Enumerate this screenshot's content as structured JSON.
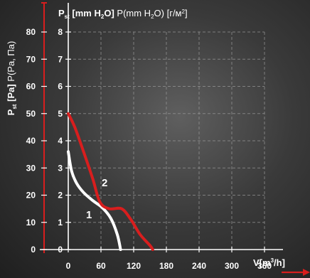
{
  "chart_data": {
    "type": "line",
    "y_axis_left": {
      "label_main": "P",
      "label_sub": "st",
      "label_unit": "[Pa]",
      "label_extra": "P(Pa, Па)",
      "ticks": [
        0,
        10,
        20,
        30,
        40,
        50,
        60,
        70,
        80
      ],
      "ylim": [
        0,
        80
      ]
    },
    "y_axis_right": {
      "label_main": "P",
      "label_sub": "st",
      "label_unit": "[mm H",
      "label_sub2": "2",
      "label_close": "O]",
      "label_extra": "P(mm H",
      "label_extra_sub": "2",
      "label_extra_close": "O) [г/м",
      "label_extra_sup": "2",
      "label_extra_end": "]",
      "ticks": [
        0,
        1,
        2,
        3,
        4,
        5,
        6,
        7,
        8
      ],
      "ylim": [
        0,
        8
      ]
    },
    "x_axis": {
      "label_main": "V[m",
      "label_sup": "3",
      "label_end": "/h]",
      "ticks": [
        0,
        60,
        120,
        180,
        240,
        300,
        360
      ],
      "xlim": [
        0,
        360
      ]
    },
    "series": [
      {
        "name": "1",
        "color": "#ffffff",
        "points": [
          [
            0,
            36
          ],
          [
            6,
            29
          ],
          [
            15,
            24.5
          ],
          [
            28,
            21
          ],
          [
            45,
            18
          ],
          [
            62,
            15.5
          ],
          [
            78,
            11.5
          ],
          [
            90,
            5.5
          ],
          [
            96,
            0
          ]
        ]
      },
      {
        "name": "2",
        "color": "#d81e1e",
        "points": [
          [
            0,
            50
          ],
          [
            12,
            45
          ],
          [
            28,
            36
          ],
          [
            45,
            26
          ],
          [
            58,
            17.5
          ],
          [
            75,
            15
          ],
          [
            98,
            15
          ],
          [
            115,
            11
          ],
          [
            132,
            5.5
          ],
          [
            150,
            1.5
          ],
          [
            155,
            0
          ]
        ]
      }
    ],
    "grid": true,
    "accent_color": "#d81e1e"
  }
}
